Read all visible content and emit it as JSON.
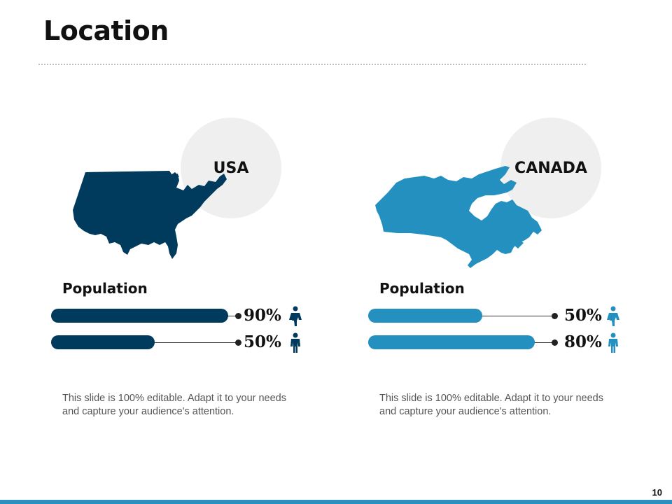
{
  "slide": {
    "title": "Location",
    "page_number": "10"
  },
  "colors": {
    "usa": "#003a5d",
    "canada": "#2490c0",
    "circle": "#efefef",
    "footer_bar": "#2b8fbf"
  },
  "panels": [
    {
      "country": "USA",
      "population_label": "Population",
      "map_icon": "usa-map-icon",
      "bars": [
        {
          "value_label": "90%",
          "fraction": 0.9,
          "icon": "female-person-icon"
        },
        {
          "value_label": "50%",
          "fraction": 0.5,
          "icon": "male-person-icon"
        }
      ],
      "description": "This slide is 100% editable. Adapt it to your needs and capture your audience's attention."
    },
    {
      "country": "CANADA",
      "population_label": "Population",
      "map_icon": "canada-map-icon",
      "bars": [
        {
          "value_label": "50%",
          "fraction": 0.5,
          "icon": "female-person-icon"
        },
        {
          "value_label": "80%",
          "fraction": 0.8,
          "icon": "male-person-icon"
        }
      ],
      "description": "This slide is 100% editable. Adapt it to your needs and capture your audience's attention."
    }
  ]
}
